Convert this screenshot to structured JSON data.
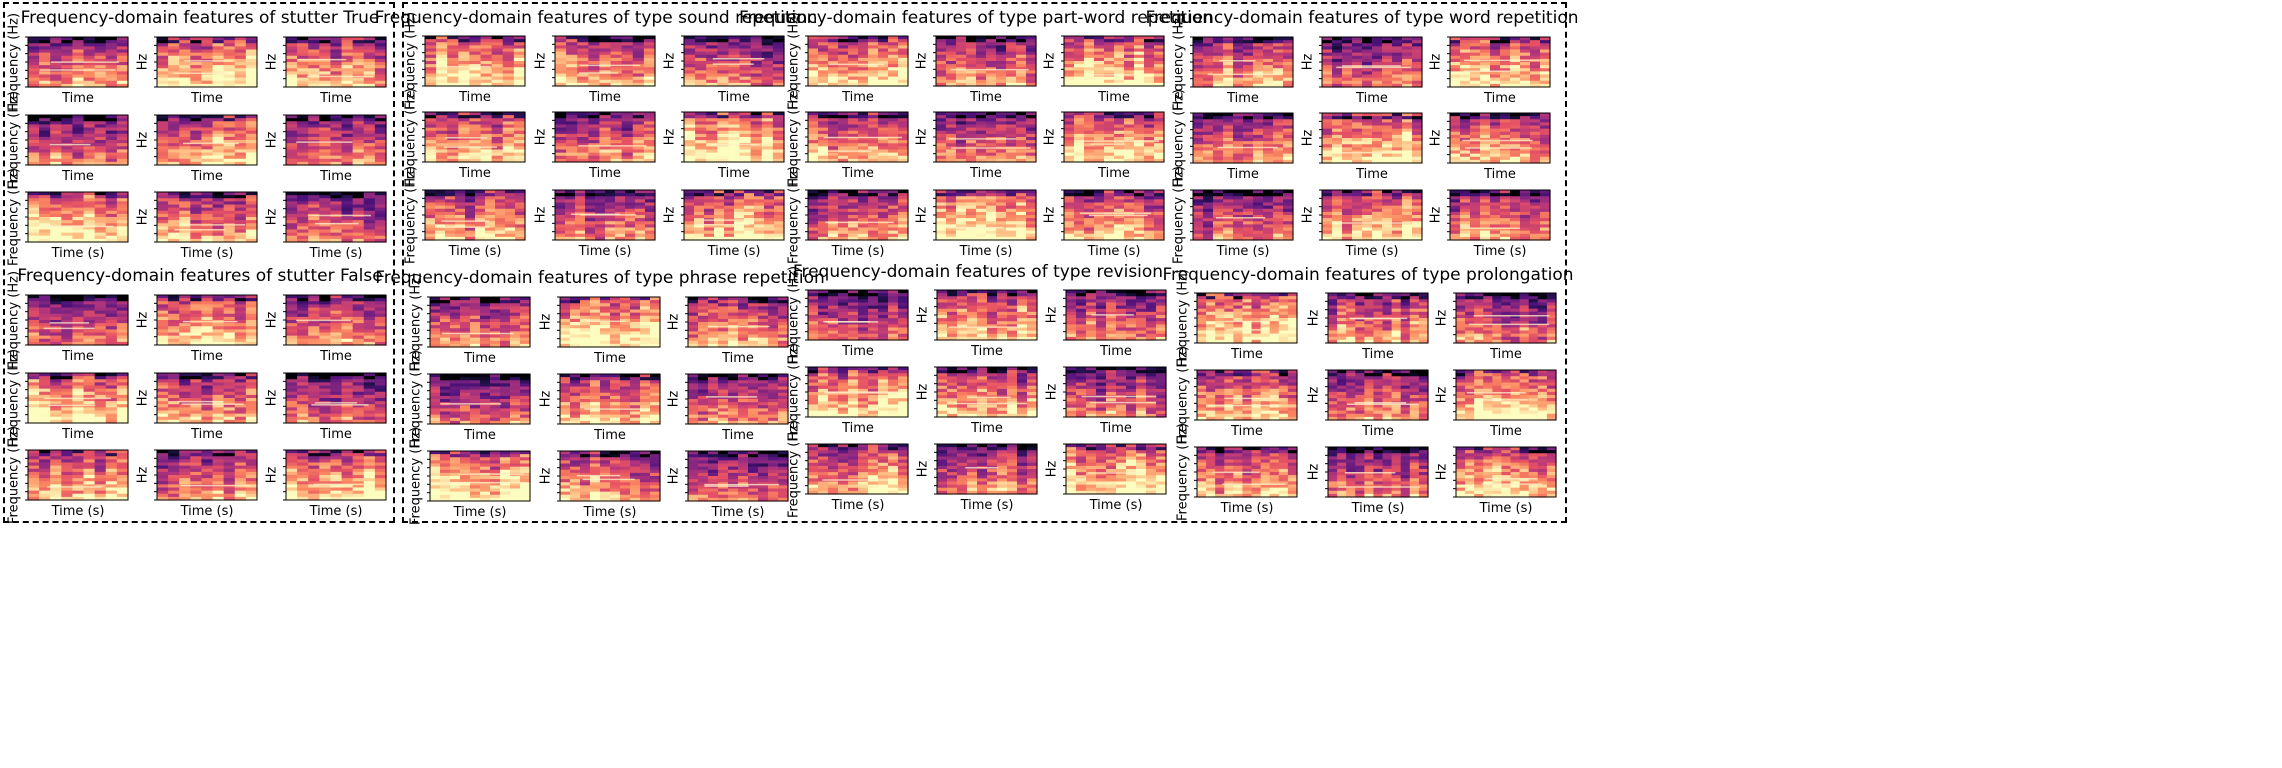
{
  "groups": [
    {
      "title": "Frequency-domain features of stutter True"
    },
    {
      "title": "Frequency-domain features of stutter False"
    },
    {
      "title": "Frequency-domain features of type sound repetition"
    },
    {
      "title": "Frequency-domain features of type part-word repetition"
    },
    {
      "title": "Frequency-domain features of type word repetition"
    },
    {
      "title": "Frequency-domain features of type phrase repetition"
    },
    {
      "title": "Frequency-domain features of type revision"
    },
    {
      "title": "Frequency-domain features of type prolongation"
    }
  ],
  "labels": {
    "xlabel_top": "Time",
    "xlabel_bottom": "Time (s)",
    "ylabel_first": "Frequency (Hz)",
    "ylabel_other": "Hz"
  },
  "colors": {
    "colormap": "magma",
    "frame": "#000000"
  },
  "chart_data": {
    "type": "heatmap",
    "description_of_content": "",
    "grid": false,
    "panels": 8,
    "subplots_per_panel": 9,
    "layout": "3x3"
  }
}
